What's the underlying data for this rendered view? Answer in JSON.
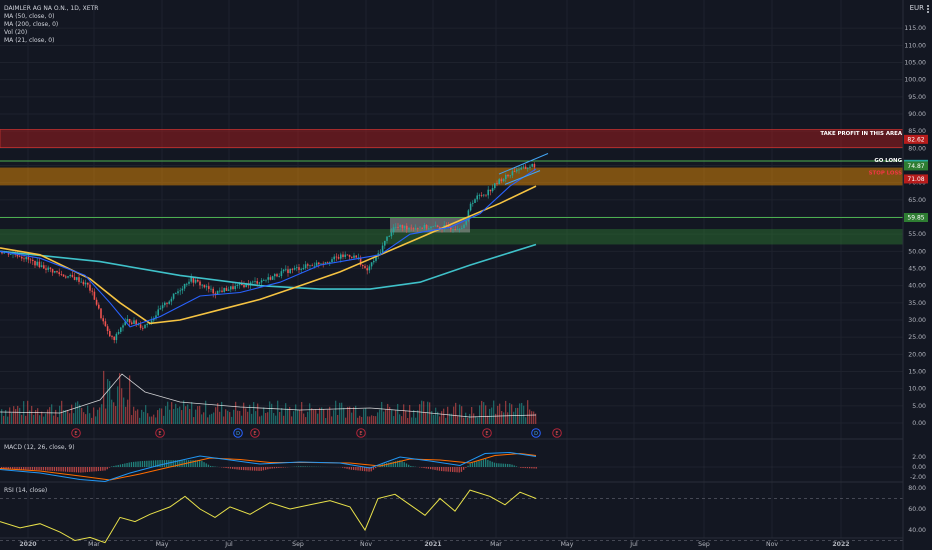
{
  "legend": {
    "symbol": "DAIMLER AG NA O.N., 1D, XETR",
    "indicators": [
      "MA (50, close, 0)",
      "MA (200, close, 0)",
      "Vol (20)",
      "MA (21, close, 0)"
    ]
  },
  "currency": "EUR",
  "colors": {
    "background": "#131722",
    "candle_up": "#26a69a",
    "candle_down": "#ef5350",
    "ma50": "#f5c342",
    "ma200": "#3fc1c9",
    "ma21": "#2962ff",
    "rsi": "#e8e14a",
    "macd": "#2196f3",
    "signal": "#ff6d00",
    "take_profit_zone": "#b71c1c",
    "stop_loss_zone": "#ff9800",
    "demand_zone": "#2e7d32"
  },
  "chart_data": [
    {
      "type": "candlestick",
      "title": "DAIMLER AG NA O.N., 1D, XETR",
      "x_ticks": [
        "2020",
        "Mar",
        "May",
        "Jul",
        "Sep",
        "Nov",
        "2021",
        "Mar",
        "May",
        "Jul",
        "Sep",
        "Nov",
        "2022"
      ],
      "y_ticks": [
        0.0,
        5.0,
        10.0,
        15.0,
        20.0,
        25.0,
        30.0,
        35.0,
        40.0,
        45.0,
        50.0,
        55.0,
        60.0,
        65.0,
        70.0,
        75.0,
        80.0,
        85.0,
        90.0,
        95.0,
        100.0,
        105.0,
        110.0,
        115.0
      ],
      "ylim": [
        0,
        118
      ],
      "price_path": [
        [
          0,
          50
        ],
        [
          18,
          49
        ],
        [
          32,
          47
        ],
        [
          47,
          45
        ],
        [
          63,
          43
        ],
        [
          77,
          42
        ],
        [
          88,
          40
        ],
        [
          95,
          36
        ],
        [
          101,
          31
        ],
        [
          108,
          26
        ],
        [
          114,
          24
        ],
        [
          121,
          28
        ],
        [
          128,
          30
        ],
        [
          136,
          29
        ],
        [
          143,
          28
        ],
        [
          151,
          30
        ],
        [
          160,
          33
        ],
        [
          170,
          36
        ],
        [
          180,
          39
        ],
        [
          190,
          42
        ],
        [
          203,
          40
        ],
        [
          214,
          38
        ],
        [
          227,
          39
        ],
        [
          241,
          40
        ],
        [
          255,
          41
        ],
        [
          268,
          42
        ],
        [
          283,
          44
        ],
        [
          297,
          45
        ],
        [
          311,
          46
        ],
        [
          324,
          47
        ],
        [
          336,
          48
        ],
        [
          348,
          49
        ],
        [
          358,
          48
        ],
        [
          366,
          44
        ],
        [
          373,
          47
        ],
        [
          380,
          50
        ],
        [
          387,
          54
        ],
        [
          394,
          57
        ],
        [
          403,
          57
        ],
        [
          414,
          57
        ],
        [
          428,
          57
        ],
        [
          443,
          57
        ],
        [
          458,
          57
        ],
        [
          466,
          58
        ],
        [
          470,
          64
        ],
        [
          478,
          66
        ],
        [
          486,
          67
        ],
        [
          494,
          69
        ],
        [
          501,
          71
        ],
        [
          508,
          72
        ],
        [
          516,
          74
        ],
        [
          524,
          74
        ],
        [
          531,
          75
        ],
        [
          536,
          75
        ]
      ],
      "ma50": [
        [
          0,
          51
        ],
        [
          40,
          49
        ],
        [
          90,
          42
        ],
        [
          120,
          35
        ],
        [
          150,
          29
        ],
        [
          180,
          30
        ],
        [
          220,
          33
        ],
        [
          260,
          36
        ],
        [
          300,
          40
        ],
        [
          340,
          44
        ],
        [
          380,
          49
        ],
        [
          420,
          54
        ],
        [
          460,
          59
        ],
        [
          500,
          64
        ],
        [
          536,
          69
        ]
      ],
      "ma200": [
        [
          0,
          50
        ],
        [
          100,
          47
        ],
        [
          180,
          43
        ],
        [
          260,
          40
        ],
        [
          320,
          39
        ],
        [
          370,
          39
        ],
        [
          420,
          41
        ],
        [
          470,
          46
        ],
        [
          536,
          52
        ]
      ],
      "ma21": [
        [
          0,
          50
        ],
        [
          40,
          48
        ],
        [
          85,
          43
        ],
        [
          110,
          35
        ],
        [
          130,
          28
        ],
        [
          160,
          31
        ],
        [
          200,
          37
        ],
        [
          240,
          38
        ],
        [
          280,
          41
        ],
        [
          320,
          46
        ],
        [
          360,
          48
        ],
        [
          380,
          49
        ],
        [
          410,
          55
        ],
        [
          450,
          57
        ],
        [
          480,
          61
        ],
        [
          510,
          69
        ],
        [
          536,
          74
        ]
      ],
      "price_labels": [
        {
          "text": "82.62",
          "value": 82.62,
          "color": "#b71c1c"
        },
        {
          "text": "75.34",
          "value": 75.34,
          "color": "#26a69a"
        },
        {
          "text": "74.87",
          "value": 74.87,
          "color": "#2e7d32"
        },
        {
          "text": "71.08",
          "value": 71.08,
          "color": "#b71c1c"
        },
        {
          "text": "59.85",
          "value": 59.85,
          "color": "#2e7d32"
        }
      ],
      "annotations": [
        {
          "text": "TAKE PROFIT IN THIS AREA",
          "value": 84.5,
          "color": "#ffffff"
        },
        {
          "text": "GO LONG",
          "value": 76.6,
          "color": "#ffffff"
        },
        {
          "text": "STOP LOSS",
          "value": 73.0,
          "color": "#f23645"
        }
      ],
      "zones": [
        {
          "name": "take-profit",
          "from": 80.2,
          "to": 85.5,
          "color": "#b71c1c"
        },
        {
          "name": "stop-loss",
          "from": 69.2,
          "to": 74.4,
          "color": "#ff9800"
        },
        {
          "name": "demand",
          "from": 52.0,
          "to": 56.5,
          "color": "#2e7d32"
        },
        {
          "name": "consolidation",
          "from": 55.5,
          "to": 59.8,
          "color": "#9e9e9e"
        }
      ],
      "horizontal_lines": [
        {
          "value": 76.3,
          "color": "#4caf50"
        },
        {
          "value": 59.85,
          "color": "#4caf50"
        }
      ],
      "earnings_markers": [
        {
          "text": "E",
          "pos": 76
        },
        {
          "text": "E",
          "pos": 160
        },
        {
          "text": "D",
          "pos": 238
        },
        {
          "text": "E",
          "pos": 255
        },
        {
          "text": "E",
          "pos": 361
        },
        {
          "text": "E",
          "pos": 487
        },
        {
          "text": "D",
          "pos": 536
        },
        {
          "text": "E",
          "pos": 557
        }
      ]
    },
    {
      "type": "line",
      "title": "MACD (12, 26, close, 9)",
      "y_ticks": [
        2.0,
        0.0,
        -2.0
      ],
      "ylim": [
        -3,
        3
      ],
      "macd": [
        [
          0,
          -0.5
        ],
        [
          40,
          -1.2
        ],
        [
          80,
          -2.5
        ],
        [
          105,
          -2.9
        ],
        [
          130,
          -1.2
        ],
        [
          160,
          0.4
        ],
        [
          200,
          2.2
        ],
        [
          230,
          1.4
        ],
        [
          260,
          0.6
        ],
        [
          300,
          1.0
        ],
        [
          340,
          0.8
        ],
        [
          370,
          -0.2
        ],
        [
          400,
          2.0
        ],
        [
          430,
          1.2
        ],
        [
          460,
          0.3
        ],
        [
          485,
          2.7
        ],
        [
          510,
          2.9
        ],
        [
          536,
          2.1
        ]
      ],
      "signal": [
        [
          0,
          -0.3
        ],
        [
          40,
          -0.8
        ],
        [
          80,
          -1.8
        ],
        [
          110,
          -2.6
        ],
        [
          140,
          -1.4
        ],
        [
          170,
          0.0
        ],
        [
          210,
          1.8
        ],
        [
          240,
          1.5
        ],
        [
          270,
          0.9
        ],
        [
          310,
          0.9
        ],
        [
          350,
          0.8
        ],
        [
          380,
          0.2
        ],
        [
          410,
          1.6
        ],
        [
          440,
          1.4
        ],
        [
          470,
          0.8
        ],
        [
          495,
          2.3
        ],
        [
          520,
          2.7
        ],
        [
          536,
          2.3
        ]
      ]
    },
    {
      "type": "line",
      "title": "RSI (14, close)",
      "y_ticks": [
        80.0,
        60.0,
        40.0
      ],
      "ylim": [
        25,
        85
      ],
      "rsi": [
        [
          0,
          48
        ],
        [
          20,
          42
        ],
        [
          40,
          46
        ],
        [
          60,
          38
        ],
        [
          75,
          30
        ],
        [
          90,
          33
        ],
        [
          105,
          28
        ],
        [
          120,
          52
        ],
        [
          135,
          48
        ],
        [
          150,
          55
        ],
        [
          170,
          62
        ],
        [
          185,
          72
        ],
        [
          200,
          60
        ],
        [
          215,
          52
        ],
        [
          230,
          62
        ],
        [
          250,
          55
        ],
        [
          270,
          66
        ],
        [
          290,
          60
        ],
        [
          310,
          64
        ],
        [
          330,
          68
        ],
        [
          350,
          62
        ],
        [
          365,
          40
        ],
        [
          378,
          70
        ],
        [
          395,
          74
        ],
        [
          410,
          64
        ],
        [
          425,
          54
        ],
        [
          440,
          70
        ],
        [
          455,
          58
        ],
        [
          470,
          78
        ],
        [
          490,
          72
        ],
        [
          505,
          64
        ],
        [
          520,
          76
        ],
        [
          536,
          70
        ]
      ]
    }
  ]
}
